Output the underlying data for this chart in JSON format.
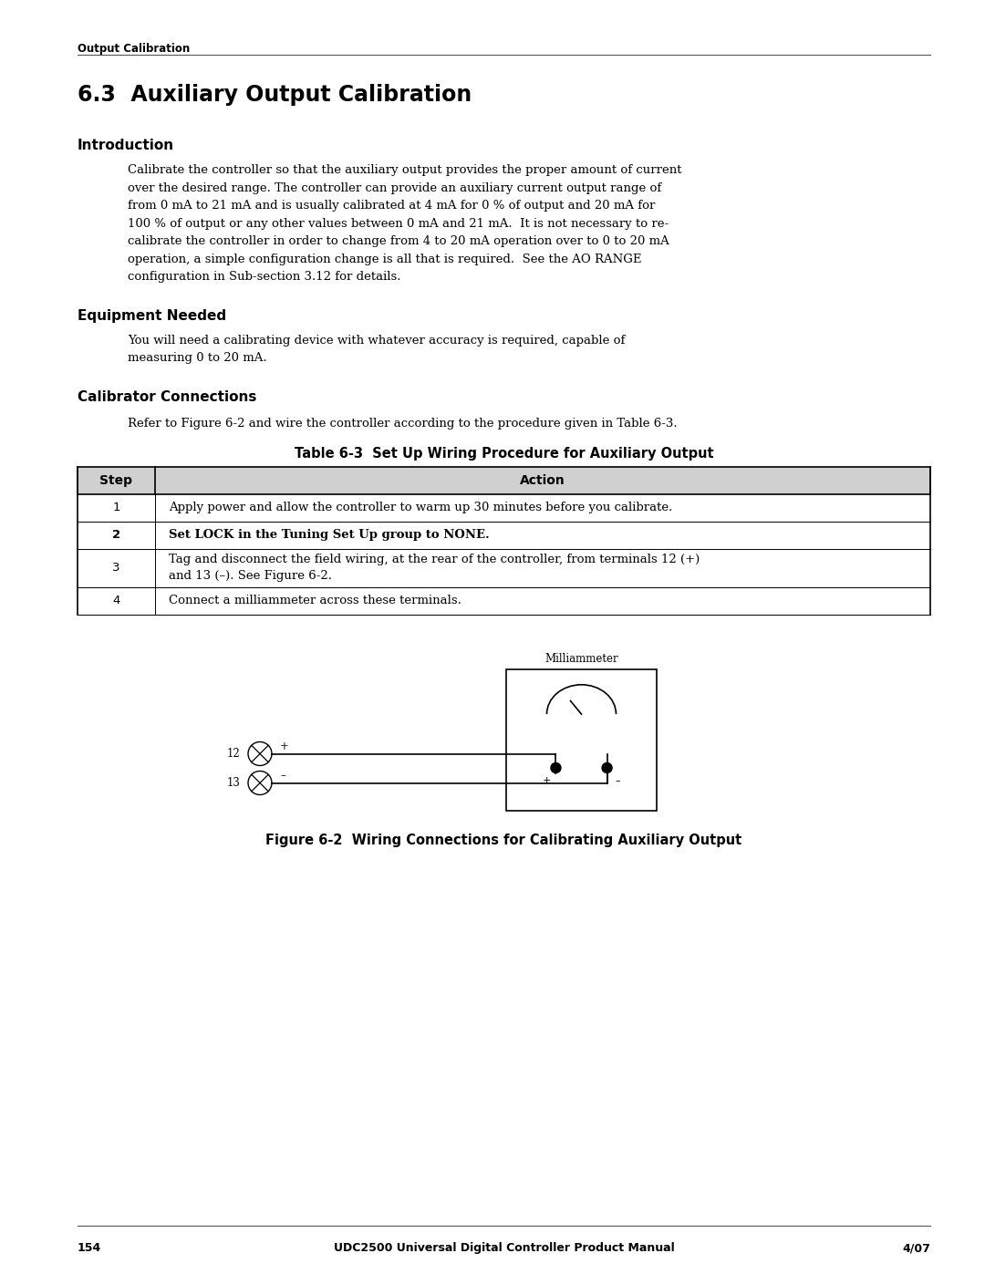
{
  "header_text": "Output Calibration",
  "title": "6.3  Auxiliary Output Calibration",
  "section1_heading": "Introduction",
  "section1_body": "Calibrate the controller so that the auxiliary output provides the proper amount of current\nover the desired range. The controller can provide an auxiliary current output range of\nfrom 0 mA to 21 mA and is usually calibrated at 4 mA for 0 % of output and 20 mA for\n100 % of output or any other values between 0 mA and 21 mA.  It is not necessary to re-\ncalibrate the controller in order to change from 4 to 20 mA operation over to 0 to 20 mA\noperation, a simple configuration change is all that is required.  See the AO RANGE\nconfiguration in Sub-section 3.12 for details.",
  "section2_heading": "Equipment Needed",
  "section2_body": "You will need a calibrating device with whatever accuracy is required, capable of\nmeasuring 0 to 20 mA.",
  "section3_heading": "Calibrator Connections",
  "section3_intro": "Refer to Figure 6-2 and wire the controller according to the procedure given in Table 6-3.",
  "table_title": "Table 6-3  Set Up Wiring Procedure for Auxiliary Output",
  "table_header": [
    "Step",
    "Action"
  ],
  "table_rows": [
    [
      "1",
      "Apply power and allow the controller to warm up 30 minutes before you calibrate."
    ],
    [
      "2",
      "Set LOCK in the Tuning Set Up group to NONE.",
      true
    ],
    [
      "3",
      "Tag and disconnect the field wiring, at the rear of the controller, from terminals 12 (+)\nand 13 (–). See Figure 6-2."
    ],
    [
      "4",
      "Connect a milliammeter across these terminals."
    ]
  ],
  "figure_caption": "Figure 6-2  Wiring Connections for Calibrating Auxiliary Output",
  "milliammeter_label": "Milliammeter",
  "terminal_12": "12",
  "terminal_13": "13",
  "plus_label": "+",
  "minus_label": "–",
  "footer_page": "154",
  "footer_center": "UDC2500 Universal Digital Controller Product Manual",
  "footer_right": "4/07",
  "bg_color": "#ffffff",
  "text_color": "#000000",
  "table_header_bg": "#d0d0d0",
  "table_border_color": "#000000"
}
